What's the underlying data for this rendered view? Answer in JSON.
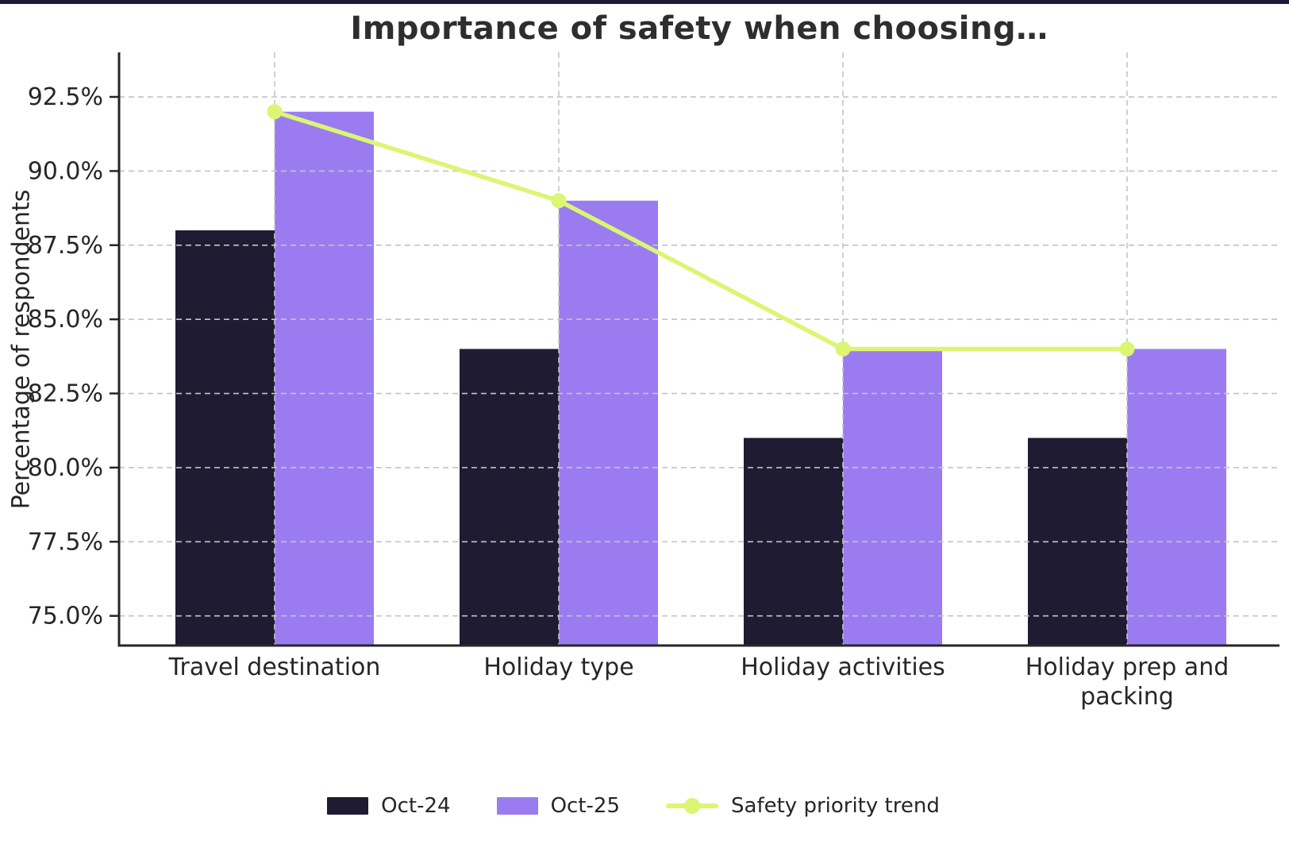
{
  "page": {
    "background": "#ffffff",
    "top_border_color": "#1e1b38"
  },
  "chart_data": {
    "type": "bar+line",
    "title": "Importance of safety when choosing…",
    "ylabel": "Percentage of respondents",
    "xlabel": "",
    "categories": [
      "Travel destination",
      "Holiday type",
      "Holiday activities",
      "Holiday prep and packing"
    ],
    "series": [
      {
        "name": "Oct-24",
        "type": "bar",
        "color": "#1e1b32",
        "values": [
          88,
          84,
          81,
          81
        ]
      },
      {
        "name": "Oct-25",
        "type": "bar",
        "color": "#9a7cf0",
        "values": [
          92,
          89,
          84,
          84
        ]
      },
      {
        "name": "Safety priority trend",
        "type": "line",
        "color": "#dcf573",
        "values": [
          92,
          89,
          84,
          84
        ]
      }
    ],
    "ylim": [
      74,
      94
    ],
    "yticks": [
      75.0,
      77.5,
      80.0,
      82.5,
      85.0,
      87.5,
      90.0,
      92.5
    ],
    "ytick_suffix": "%",
    "grid": true,
    "gridline_color": "#c4c4c4",
    "axis_color": "#262626",
    "tick_label_color": "#262626",
    "legend_position": "bottom"
  }
}
